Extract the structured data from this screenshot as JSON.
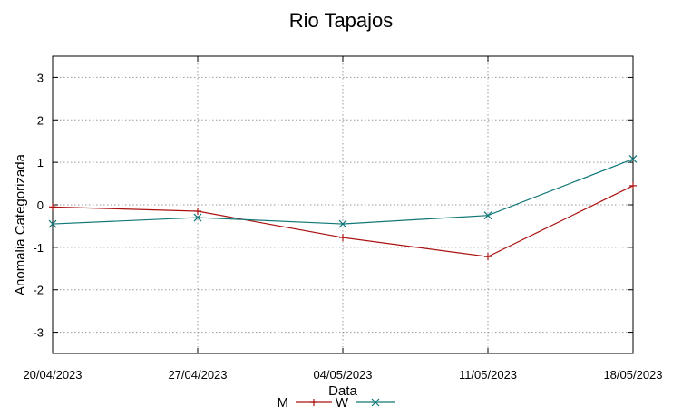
{
  "chart_data": {
    "type": "line",
    "title": "Rio Tapajos",
    "xlabel": "Data",
    "ylabel": "Anomalia Categorizada",
    "categories": [
      "20/04/2023",
      "27/04/2023",
      "04/05/2023",
      "11/05/2023",
      "18/05/2023"
    ],
    "ylim": [
      -3.5,
      3.5
    ],
    "yticks": [
      -3,
      -2,
      -1,
      0,
      1,
      2,
      3
    ],
    "grid": true,
    "legend_position": "bottom-center",
    "series": [
      {
        "name": "M",
        "color": "#aa1111",
        "marker": "plus",
        "values": [
          -0.05,
          -0.15,
          -0.77,
          -1.22,
          0.45
        ]
      },
      {
        "name": "W",
        "color": "#117777",
        "marker": "cross",
        "values": [
          -0.45,
          -0.3,
          -0.45,
          -0.25,
          1.08
        ]
      }
    ]
  }
}
